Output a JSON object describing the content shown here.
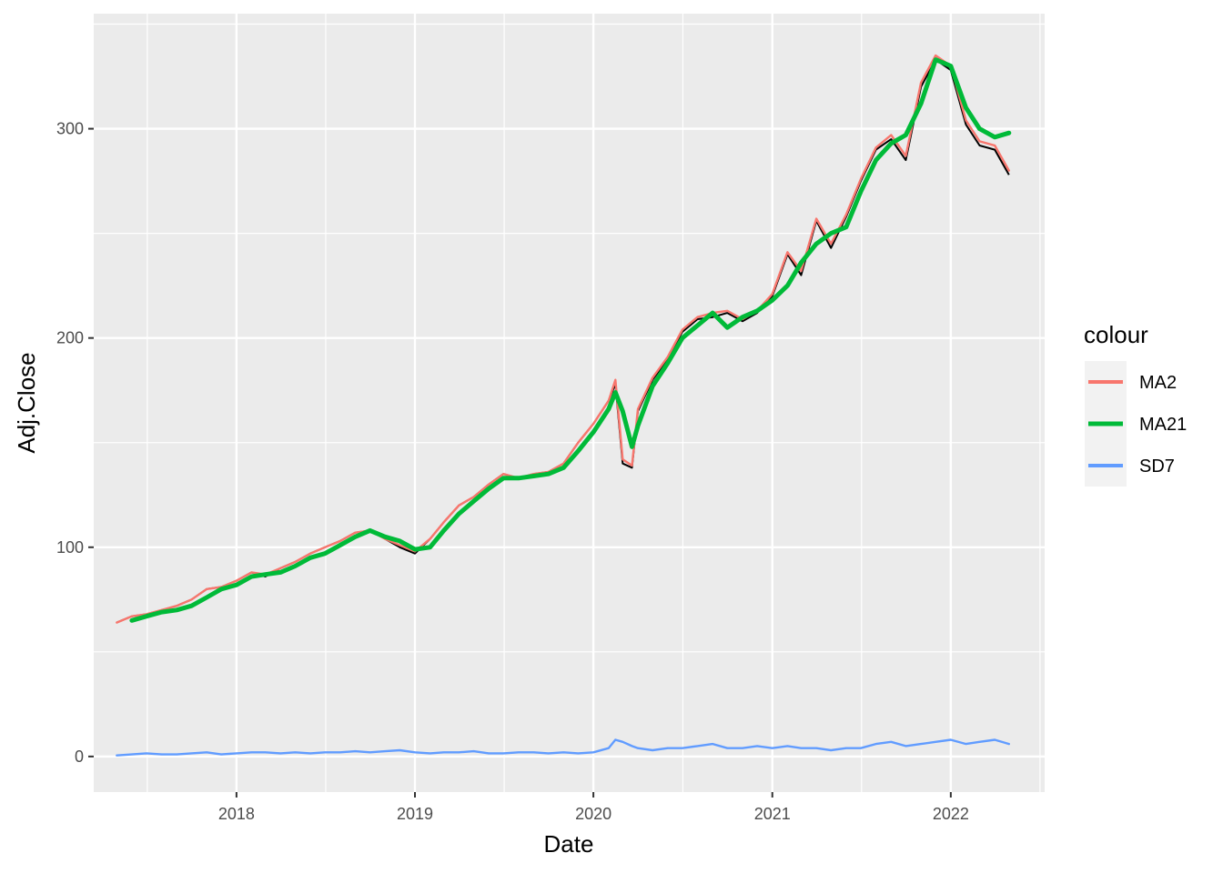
{
  "chart_data": {
    "type": "line",
    "xlabel": "Date",
    "ylabel": "Adj.Close",
    "x_range": [
      "2017-03-15",
      "2022-07-12"
    ],
    "ylim": [
      -17,
      355
    ],
    "x_ticks": [
      "2018",
      "2019",
      "2020",
      "2021",
      "2022"
    ],
    "x_tick_dates": [
      "2018-01-01",
      "2019-01-01",
      "2020-01-01",
      "2021-01-01",
      "2022-01-01"
    ],
    "y_ticks": [
      "0",
      "100",
      "200",
      "300"
    ],
    "y_tick_values": [
      0,
      100,
      200,
      300
    ],
    "grid": true,
    "legend": {
      "title": "colour",
      "position": "right",
      "entries": [
        "MA2",
        "MA21",
        "SD7"
      ]
    },
    "x": [
      "2017-05-01",
      "2017-06-01",
      "2017-07-01",
      "2017-08-01",
      "2017-09-01",
      "2017-10-01",
      "2017-11-01",
      "2017-12-01",
      "2018-01-01",
      "2018-02-01",
      "2018-03-01",
      "2018-04-01",
      "2018-05-01",
      "2018-06-01",
      "2018-07-01",
      "2018-08-01",
      "2018-09-01",
      "2018-10-01",
      "2018-11-01",
      "2018-12-01",
      "2019-01-01",
      "2019-02-01",
      "2019-03-01",
      "2019-04-01",
      "2019-05-01",
      "2019-06-01",
      "2019-07-01",
      "2019-08-01",
      "2019-09-01",
      "2019-10-01",
      "2019-11-01",
      "2019-12-01",
      "2020-01-01",
      "2020-02-01",
      "2020-02-15",
      "2020-03-01",
      "2020-03-20",
      "2020-04-01",
      "2020-05-01",
      "2020-06-01",
      "2020-07-01",
      "2020-08-01",
      "2020-09-01",
      "2020-10-01",
      "2020-11-01",
      "2020-12-01",
      "2021-01-01",
      "2021-02-01",
      "2021-03-01",
      "2021-04-01",
      "2021-05-01",
      "2021-06-01",
      "2021-07-01",
      "2021-08-01",
      "2021-09-01",
      "2021-10-01",
      "2021-11-01",
      "2021-12-01",
      "2022-01-01",
      "2022-02-01",
      "2022-03-01",
      "2022-04-01",
      "2022-04-30"
    ],
    "adj_close": [
      64,
      67,
      68,
      70,
      72,
      75,
      80,
      81,
      84,
      88,
      86,
      90,
      93,
      97,
      100,
      103,
      107,
      108,
      104,
      100,
      97,
      104,
      112,
      120,
      124,
      130,
      135,
      133,
      135,
      136,
      140,
      150,
      159,
      170,
      178,
      140,
      138,
      165,
      180,
      190,
      203,
      209,
      210,
      212,
      208,
      212,
      220,
      240,
      230,
      256,
      243,
      258,
      275,
      290,
      295,
      285,
      320,
      333,
      328,
      302,
      292,
      290,
      278
    ],
    "series": [
      {
        "name": "MA2",
        "color": "#F8766D",
        "values": [
          64,
          67,
          68,
          70,
          72,
          75,
          80,
          81,
          84,
          88,
          87,
          90,
          93,
          97,
          100,
          103,
          107,
          108,
          104,
          101,
          98,
          104,
          112,
          120,
          124,
          130,
          135,
          133,
          135,
          136,
          140,
          150,
          159,
          170,
          180,
          142,
          139,
          166,
          181,
          191,
          204,
          210,
          212,
          213,
          209,
          213,
          221,
          241,
          232,
          257,
          245,
          259,
          276,
          291,
          297,
          287,
          322,
          335,
          330,
          304,
          294,
          292,
          280
        ]
      },
      {
        "name": "MA21",
        "color": "#00BA38",
        "values": [
          null,
          65,
          67,
          69,
          70,
          72,
          76,
          80,
          82,
          86,
          87,
          88,
          91,
          95,
          97,
          101,
          105,
          108,
          105,
          103,
          99,
          100,
          108,
          116,
          122,
          128,
          133,
          133,
          134,
          135,
          138,
          146,
          155,
          166,
          174,
          165,
          148,
          158,
          177,
          188,
          200,
          206,
          212,
          205,
          210,
          213,
          218,
          225,
          236,
          245,
          250,
          253,
          270,
          285,
          293,
          297,
          312,
          333,
          330,
          310,
          300,
          296,
          298
        ]
      },
      {
        "name": "SD7",
        "color": "#619CFF",
        "values": [
          0.5,
          1,
          1.5,
          1,
          1,
          1.5,
          2,
          1,
          1.5,
          2,
          2,
          1.5,
          2,
          1.5,
          2,
          2,
          2.5,
          2,
          2.5,
          3,
          2,
          1.5,
          2,
          2,
          2.5,
          1.5,
          1.5,
          2,
          2,
          1.5,
          2,
          1.5,
          2,
          4,
          8,
          7,
          5,
          4,
          3,
          4,
          4,
          5,
          6,
          4,
          4,
          5,
          4,
          5,
          4,
          4,
          3,
          4,
          4,
          6,
          7,
          5,
          6,
          7,
          8,
          6,
          7,
          8,
          6
        ]
      }
    ]
  }
}
